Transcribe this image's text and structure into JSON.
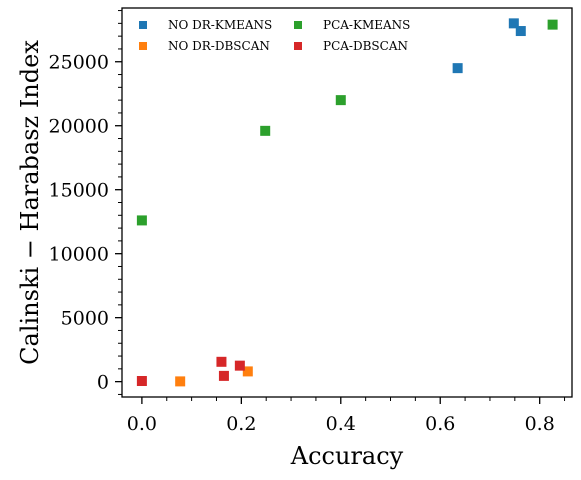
{
  "chart_data": {
    "type": "scatter",
    "title": "",
    "xlabel": "Accuracy",
    "ylabel": "Calinski − Harabasz Index",
    "xlim": [
      -0.04,
      0.865
    ],
    "ylim": [
      -1200,
      29200
    ],
    "x_ticks": [
      0.0,
      0.2,
      0.4,
      0.6,
      0.8
    ],
    "x_tick_labels": [
      "0.0",
      "0.2",
      "0.4",
      "0.6",
      "0.8"
    ],
    "y_ticks": [
      0,
      5000,
      10000,
      15000,
      20000,
      25000
    ],
    "y_tick_labels": [
      "0",
      "5000",
      "10000",
      "15000",
      "20000",
      "25000"
    ],
    "grid": false,
    "legend_position": "top-left",
    "series": [
      {
        "name": "NO DR-KMEANS",
        "color": "#1f77b4",
        "x": [
          0.635,
          0.748,
          0.762
        ],
        "y": [
          24500,
          28000,
          27400
        ]
      },
      {
        "name": "NO DR-DBSCAN",
        "color": "#ff7f0e",
        "x": [
          0.077,
          0.213
        ],
        "y": [
          20,
          800
        ]
      },
      {
        "name": "PCA-KMEANS",
        "color": "#2ca02c",
        "x": [
          0.0,
          0.248,
          0.4,
          0.826
        ],
        "y": [
          12600,
          19600,
          22000,
          27900
        ]
      },
      {
        "name": "PCA-DBSCAN",
        "color": "#d62728",
        "x": [
          0.0,
          0.16,
          0.165,
          0.197
        ],
        "y": [
          50,
          1550,
          450,
          1250
        ]
      }
    ]
  }
}
